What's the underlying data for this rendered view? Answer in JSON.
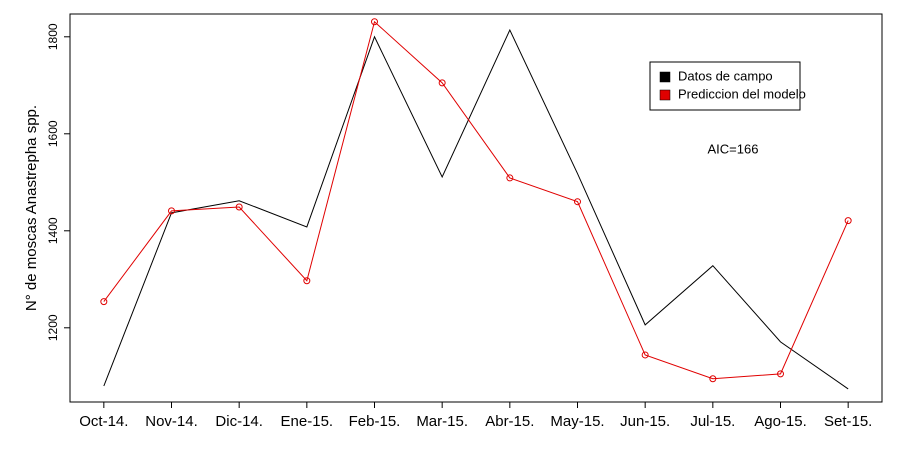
{
  "chart_data": {
    "type": "line",
    "y_label": "N° de moscas Anastrepha spp.",
    "annotation": "AIC=166",
    "categories": [
      "Oct-14.",
      "Nov-14.",
      "Dic-14.",
      "Ene-15.",
      "Feb-15.",
      "Mar-15.",
      "Abr-15.",
      "May-15.",
      "Jun-15.",
      "Jul-15.",
      "Ago-15.",
      "Set-15."
    ],
    "series": [
      {
        "name": "Datos de campo",
        "color": "#000000",
        "markers": false,
        "values": [
          1080,
          1437,
          1462,
          1408,
          1800,
          1511,
          1814,
          1518,
          1206,
          1328,
          1171,
          1074
        ]
      },
      {
        "name": "Prediccion del modelo",
        "color": "#e00000",
        "markers": true,
        "values": [
          1254,
          1441,
          1449,
          1297,
          1831,
          1705,
          1509,
          1460,
          1144,
          1095,
          1105,
          1421
        ]
      }
    ],
    "ylim": [
      1047,
      1847
    ],
    "yticks": [
      1200,
      1400,
      1600,
      1800
    ],
    "legend": "top-right"
  }
}
